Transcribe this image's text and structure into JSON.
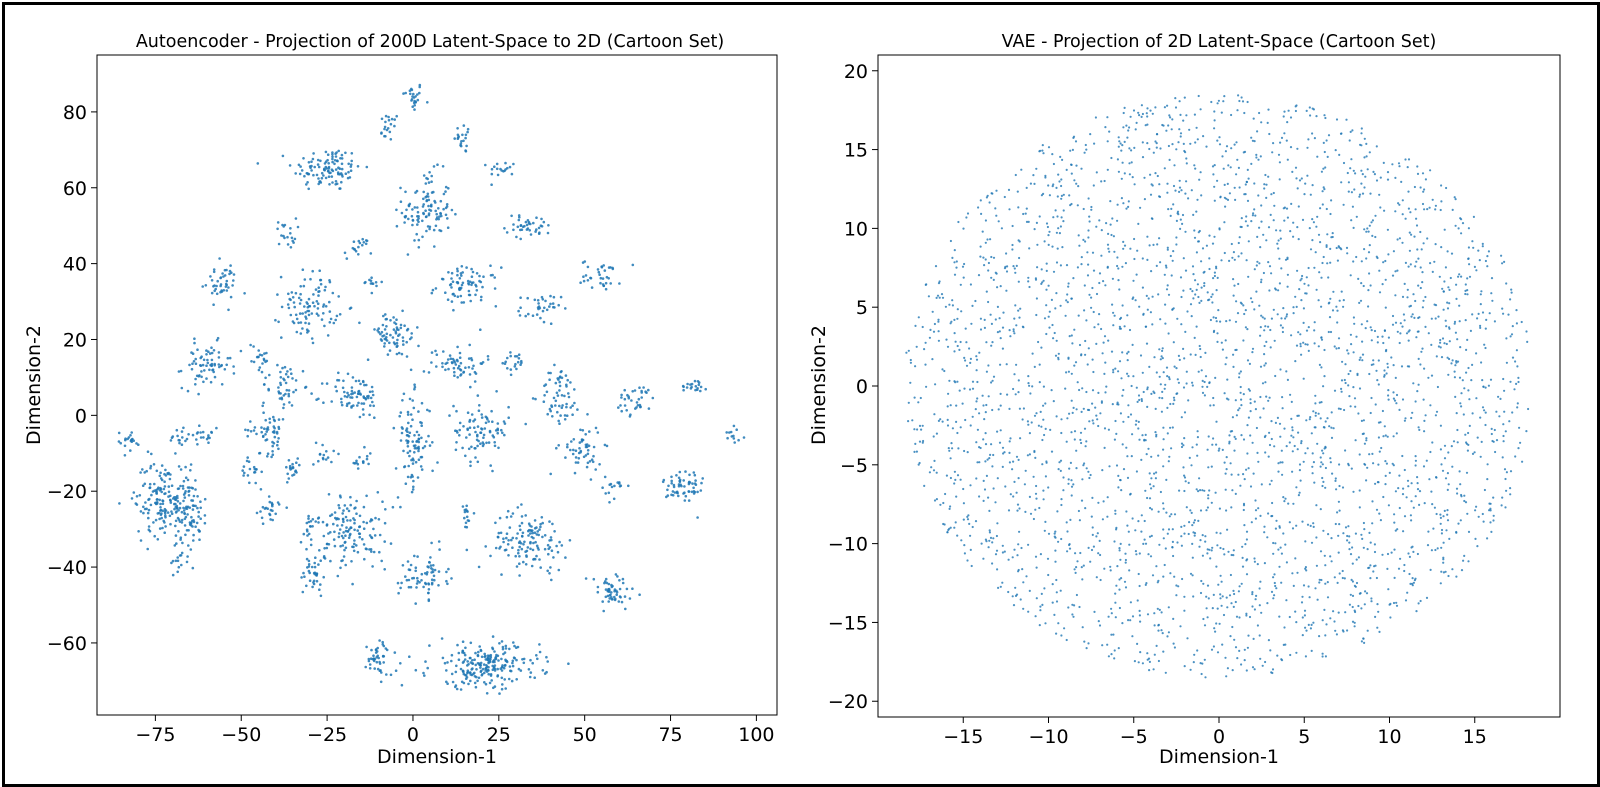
{
  "chart_data": [
    {
      "type": "scatter",
      "title": "Autoencoder - Projection of 200D Latent-Space to 2D (Cartoon Set)",
      "xlabel": "Dimension-1",
      "ylabel": "Dimension-2",
      "xlim": [
        -92,
        106
      ],
      "ylim": [
        -79,
        95
      ],
      "xticks": [
        "−75",
        "−50",
        "−25",
        "0",
        "25",
        "50",
        "75",
        "100"
      ],
      "xtick_values": [
        -75,
        -50,
        -25,
        0,
        25,
        50,
        75,
        100
      ],
      "yticks": [
        "−60",
        "−40",
        "−20",
        "0",
        "20",
        "40",
        "60",
        "80"
      ],
      "ytick_values": [
        -60,
        -40,
        -20,
        0,
        20,
        40,
        60,
        80
      ],
      "grid": false,
      "point_color": "#1f77b4",
      "clusters": [
        {
          "x": 0,
          "y": 84,
          "sx": 1.5,
          "sy": 2,
          "n": 25
        },
        {
          "x": -7,
          "y": 76,
          "sx": 1.5,
          "sy": 2,
          "n": 20
        },
        {
          "x": 15,
          "y": 73,
          "sx": 1.5,
          "sy": 2,
          "n": 20
        },
        {
          "x": -25,
          "y": 65,
          "sx": 5,
          "sy": 3,
          "n": 110
        },
        {
          "x": 26,
          "y": 65,
          "sx": 2,
          "sy": 1,
          "n": 18
        },
        {
          "x": 4,
          "y": 54,
          "sx": 3.5,
          "sy": 5,
          "n": 110
        },
        {
          "x": 34,
          "y": 50,
          "sx": 3.5,
          "sy": 1.5,
          "n": 40
        },
        {
          "x": -37,
          "y": 48,
          "sx": 1.5,
          "sy": 2,
          "n": 20
        },
        {
          "x": -16,
          "y": 44,
          "sx": 2,
          "sy": 1.5,
          "n": 18
        },
        {
          "x": -56,
          "y": 35,
          "sx": 2.5,
          "sy": 2.5,
          "n": 45
        },
        {
          "x": 16,
          "y": 34,
          "sx": 4.5,
          "sy": 2.5,
          "n": 75
        },
        {
          "x": -12,
          "y": 35,
          "sx": 1.5,
          "sy": 1,
          "n": 12
        },
        {
          "x": 55,
          "y": 37,
          "sx": 3,
          "sy": 2,
          "n": 35
        },
        {
          "x": -30,
          "y": 29,
          "sx": 4,
          "sy": 4.5,
          "n": 100
        },
        {
          "x": 37,
          "y": 28,
          "sx": 3,
          "sy": 2,
          "n": 35
        },
        {
          "x": -6,
          "y": 21,
          "sx": 4,
          "sy": 3,
          "n": 70
        },
        {
          "x": -60,
          "y": 13,
          "sx": 3.5,
          "sy": 3,
          "n": 70
        },
        {
          "x": -45,
          "y": 15,
          "sx": 2,
          "sy": 2,
          "n": 20
        },
        {
          "x": 13,
          "y": 14,
          "sx": 4,
          "sy": 2.5,
          "n": 60
        },
        {
          "x": 30,
          "y": 14,
          "sx": 2,
          "sy": 1.5,
          "n": 20
        },
        {
          "x": -38,
          "y": 8,
          "sx": 3,
          "sy": 3,
          "n": 45
        },
        {
          "x": -17,
          "y": 5,
          "sx": 4,
          "sy": 3,
          "n": 75
        },
        {
          "x": 43,
          "y": 5,
          "sx": 3,
          "sy": 4,
          "n": 60
        },
        {
          "x": 65,
          "y": 4,
          "sx": 3,
          "sy": 2,
          "n": 35
        },
        {
          "x": 82,
          "y": 8,
          "sx": 2,
          "sy": 1,
          "n": 20
        },
        {
          "x": -42,
          "y": -4,
          "sx": 3,
          "sy": 3,
          "n": 55
        },
        {
          "x": 20,
          "y": -4,
          "sx": 4,
          "sy": 4,
          "n": 90
        },
        {
          "x": 0,
          "y": -7,
          "sx": 2.5,
          "sy": 6,
          "n": 95
        },
        {
          "x": -83,
          "y": -7,
          "sx": 2,
          "sy": 1.5,
          "n": 20
        },
        {
          "x": -68,
          "y": -6,
          "sx": 1.5,
          "sy": 1.5,
          "n": 15
        },
        {
          "x": -60,
          "y": -5,
          "sx": 2,
          "sy": 1.5,
          "n": 18
        },
        {
          "x": 49,
          "y": -9,
          "sx": 3,
          "sy": 3.5,
          "n": 55
        },
        {
          "x": 94,
          "y": -5,
          "sx": 1.5,
          "sy": 1,
          "n": 12
        },
        {
          "x": -26,
          "y": -10,
          "sx": 1.5,
          "sy": 2,
          "n": 15
        },
        {
          "x": -15,
          "y": -12,
          "sx": 1.5,
          "sy": 1.5,
          "n": 15
        },
        {
          "x": -35,
          "y": -15,
          "sx": 1.5,
          "sy": 2,
          "n": 20
        },
        {
          "x": -47,
          "y": -15,
          "sx": 1.5,
          "sy": 2,
          "n": 18
        },
        {
          "x": -72,
          "y": -22,
          "sx": 4.5,
          "sy": 5,
          "n": 190
        },
        {
          "x": -65,
          "y": -26,
          "sx": 2,
          "sy": 4,
          "n": 50
        },
        {
          "x": 79,
          "y": -19,
          "sx": 3,
          "sy": 3,
          "n": 60
        },
        {
          "x": 59,
          "y": -19,
          "sx": 1.5,
          "sy": 1.5,
          "n": 15
        },
        {
          "x": -42,
          "y": -25,
          "sx": 2,
          "sy": 2,
          "n": 25
        },
        {
          "x": -18,
          "y": -30,
          "sx": 5,
          "sy": 5,
          "n": 140
        },
        {
          "x": -30,
          "y": -30,
          "sx": 1.5,
          "sy": 2,
          "n": 18
        },
        {
          "x": 15,
          "y": -27,
          "sx": 1,
          "sy": 2,
          "n": 15
        },
        {
          "x": 34,
          "y": -33,
          "sx": 5.5,
          "sy": 4,
          "n": 130
        },
        {
          "x": -68,
          "y": -39,
          "sx": 1.5,
          "sy": 1.5,
          "n": 15
        },
        {
          "x": -29,
          "y": -42,
          "sx": 2,
          "sy": 3,
          "n": 35
        },
        {
          "x": 3,
          "y": -42,
          "sx": 3.5,
          "sy": 3,
          "n": 70
        },
        {
          "x": 58,
          "y": -47,
          "sx": 3.5,
          "sy": 2.5,
          "n": 55
        },
        {
          "x": -10,
          "y": -64,
          "sx": 2,
          "sy": 2.5,
          "n": 45
        },
        {
          "x": 21,
          "y": -66,
          "sx": 8,
          "sy": 3,
          "n": 230
        }
      ]
    },
    {
      "type": "scatter",
      "title": "VAE - Projection of 2D Latent-Space (Cartoon Set)",
      "xlabel": "Dimension-1",
      "ylabel": "Dimension-2",
      "xlim": [
        -20,
        20
      ],
      "ylim": [
        -21,
        21
      ],
      "xticks": [
        "−15",
        "−10",
        "−5",
        "0",
        "5",
        "10",
        "15"
      ],
      "xtick_values": [
        -15,
        -10,
        -5,
        0,
        5,
        10,
        15
      ],
      "yticks": [
        "−20",
        "−15",
        "−10",
        "−5",
        "0",
        "5",
        "10",
        "15",
        "20"
      ],
      "ytick_values": [
        -20,
        -15,
        -10,
        -5,
        0,
        5,
        10,
        15,
        20
      ],
      "grid": false,
      "point_color": "#1f77b4",
      "distribution": {
        "shape": "disk",
        "center": [
          0,
          0
        ],
        "radius": 18.5,
        "n": 3200
      }
    }
  ]
}
